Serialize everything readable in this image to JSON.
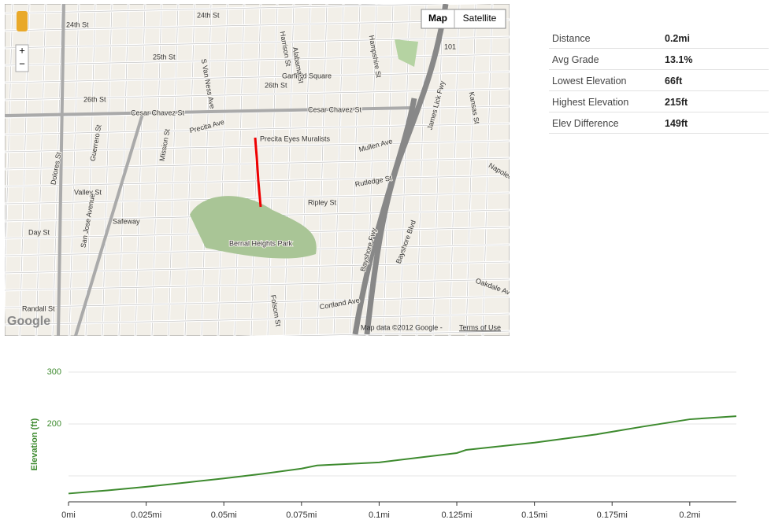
{
  "map": {
    "buttons": [
      "Map",
      "Satellite"
    ],
    "zoom": [
      "+",
      "−"
    ],
    "attribution": "Map data ©2012 Google - ",
    "terms": "Terms of Use",
    "logo": "Google",
    "labels": [
      "24th St",
      "24th St",
      "25th St",
      "26th St",
      "26th St",
      "Cesar Chavez St",
      "Cesar Chavez St",
      "Garfield Square",
      "Precita Eyes Muralists",
      "Dolores St",
      "Guerrero St",
      "Mission St",
      "Valley St",
      "Day St",
      "Safeway",
      "Bernal Heights Park",
      "Ripley St",
      "Rutledge St",
      "Precita Ave",
      "James Lick Fwy",
      "Bayshore Fwy",
      "Bayshore Blvd",
      "Oakdale Ave",
      "Napoleon St",
      "Kansas St",
      "Cortland Ave",
      "San Jose Avenue",
      "101",
      "S Van Ness Ave",
      "Randall St",
      "Alabama St",
      "Harrison St",
      "Folsom St",
      "Hampshire St",
      "Mullen Ave"
    ]
  },
  "stats": [
    [
      "Distance",
      "0.2mi"
    ],
    [
      "Avg Grade",
      "13.1%"
    ],
    [
      "Lowest Elevation",
      "66ft"
    ],
    [
      "Highest Elevation",
      "215ft"
    ],
    [
      "Elev Difference",
      "149ft"
    ]
  ],
  "chart_data": {
    "type": "line",
    "y_label": "Elevation (ft)",
    "x": [
      0,
      0.0125,
      0.025,
      0.0375,
      0.05,
      0.0625,
      0.075,
      0.08,
      0.1,
      0.125,
      0.128,
      0.15,
      0.17,
      0.185,
      0.2,
      0.215
    ],
    "values": [
      66,
      72,
      79,
      87,
      95,
      104,
      114,
      120,
      126,
      144,
      150,
      164,
      180,
      195,
      209,
      215
    ],
    "color": "#3d8a2e",
    "xlim": [
      0,
      0.215
    ],
    "ylim": [
      50,
      300
    ],
    "xticks": [
      {
        "value": 0,
        "label": "0mi"
      },
      {
        "value": 0.025,
        "label": "0.025mi"
      },
      {
        "value": 0.05,
        "label": "0.05mi"
      },
      {
        "value": 0.075,
        "label": "0.075mi"
      },
      {
        "value": 0.1,
        "label": "0.1mi"
      },
      {
        "value": 0.125,
        "label": "0.125mi"
      },
      {
        "value": 0.15,
        "label": "0.15mi"
      },
      {
        "value": 0.175,
        "label": "0.175mi"
      },
      {
        "value": 0.2,
        "label": "0.2mi"
      }
    ],
    "yticks": [
      {
        "value": 100,
        "label": null
      },
      200,
      300
    ],
    "grid": true
  }
}
